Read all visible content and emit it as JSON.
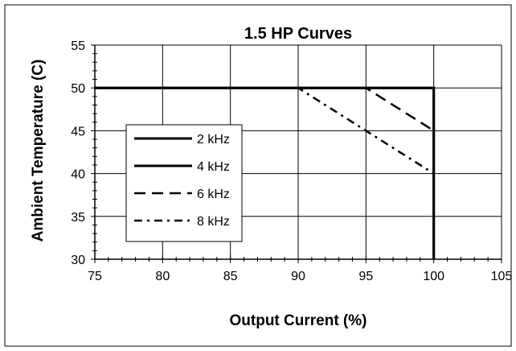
{
  "chart_data": {
    "type": "line",
    "title": "1.5 HP Curves",
    "xlabel": "Output Current (%)",
    "ylabel": "Ambient Temperature (C)",
    "xlim": [
      75,
      105
    ],
    "ylim": [
      30,
      55
    ],
    "xticks": [
      "75",
      "80",
      "85",
      "90",
      "95",
      "100",
      "105"
    ],
    "yticks": [
      "30",
      "35",
      "40",
      "45",
      "50",
      "55"
    ],
    "grid": true,
    "legend_position": "center-left",
    "series": [
      {
        "name": "2 kHz",
        "style": "solid",
        "x": [
          75,
          100,
          100
        ],
        "y": [
          50,
          50,
          30
        ]
      },
      {
        "name": "4 kHz",
        "style": "solid",
        "x": [
          75,
          100,
          100
        ],
        "y": [
          50,
          50,
          30
        ]
      },
      {
        "name": "6 kHz",
        "style": "dashed",
        "x": [
          75,
          95,
          100,
          100
        ],
        "y": [
          50,
          50,
          45,
          30
        ]
      },
      {
        "name": "8 kHz",
        "style": "dash-dot",
        "x": [
          75,
          90,
          100,
          100
        ],
        "y": [
          50,
          50,
          40,
          30
        ]
      }
    ],
    "colors": {
      "line": "#000000",
      "grid": "#000000",
      "background": "#ffffff"
    }
  }
}
